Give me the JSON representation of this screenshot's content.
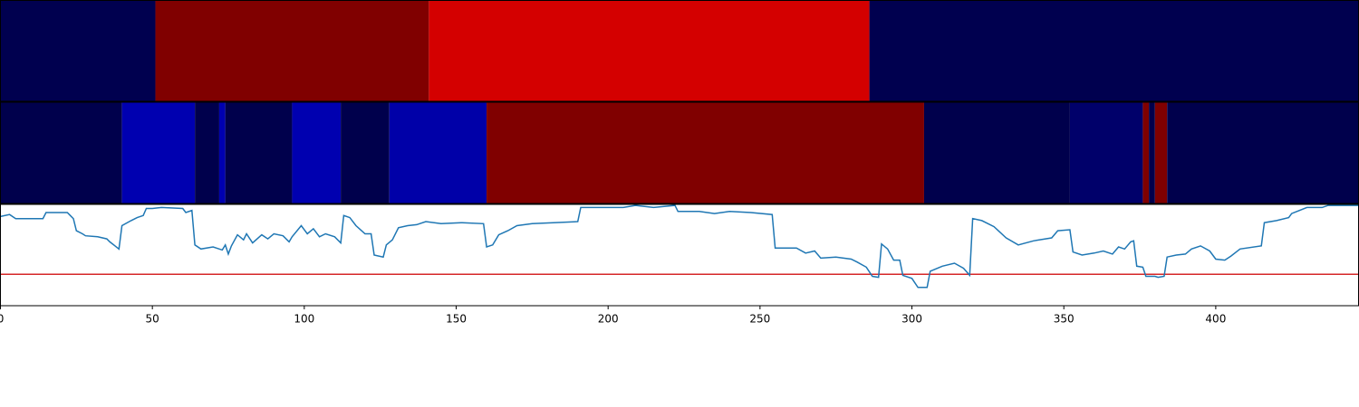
{
  "chart_data": [
    {
      "type": "segments",
      "xlim": [
        0,
        447
      ],
      "bounds": [
        0,
        51,
        141,
        286,
        447
      ],
      "colors": [
        "#00004f",
        "#800000",
        "#d40000",
        "#00004f"
      ]
    },
    {
      "type": "segments",
      "xlim": [
        0,
        447
      ],
      "bounds": [
        0,
        40,
        64,
        72,
        74,
        96,
        112,
        128,
        160,
        304,
        352,
        376,
        378,
        380,
        384,
        447
      ],
      "colors": [
        "#00004c",
        "#0000b0",
        "#00004c",
        "#0000b0",
        "#00004c",
        "#0000b0",
        "#00004c",
        "#0000a8",
        "#800000",
        "#00004c",
        "#00006a",
        "#800000",
        "#00004c",
        "#800000",
        "#00004c"
      ]
    },
    {
      "type": "line",
      "xlim": [
        0,
        447
      ],
      "ylim": [
        0,
        100
      ],
      "color": "#1f77b4",
      "hline": 31,
      "hline_color": "#d62728",
      "xticks": [
        0,
        50,
        100,
        150,
        200,
        250,
        300,
        350,
        400
      ],
      "x": [
        0,
        3,
        5,
        14,
        15,
        22,
        23,
        24,
        25,
        27,
        28,
        32,
        35,
        36,
        39,
        40,
        43,
        45,
        47,
        48,
        50,
        53,
        60,
        61,
        63,
        64,
        66,
        70,
        73,
        74,
        75,
        76,
        78,
        80,
        81,
        83,
        86,
        88,
        90,
        93,
        95,
        96,
        99,
        101,
        103,
        105,
        107,
        110,
        112,
        113,
        115,
        117,
        120,
        122,
        123,
        126,
        127,
        129,
        131,
        134,
        137,
        140,
        145,
        152,
        159,
        160,
        162,
        164,
        167,
        170,
        175,
        182,
        190,
        191,
        205,
        209,
        215,
        222,
        223,
        230,
        235,
        240,
        247,
        254,
        255,
        262,
        265,
        268,
        270,
        275,
        280,
        282,
        285,
        287,
        289,
        290,
        292,
        294,
        296,
        297,
        300,
        302,
        305,
        306,
        310,
        314,
        317,
        319,
        320,
        323,
        327,
        331,
        335,
        340,
        346,
        348,
        352,
        353,
        356,
        360,
        363,
        366,
        368,
        370,
        372,
        373,
        374,
        376,
        377,
        380,
        381,
        383,
        384,
        387,
        390,
        392,
        395,
        398,
        400,
        403,
        405,
        408,
        415,
        416,
        420,
        424,
        425,
        430,
        435,
        437,
        447
      ],
      "values": [
        88,
        90,
        86,
        86,
        92,
        92,
        89,
        86,
        74,
        71,
        69,
        68,
        66,
        63,
        56,
        79,
        84,
        87,
        89,
        96,
        96,
        97,
        96,
        92,
        94,
        60,
        56,
        58,
        55,
        60,
        51,
        59,
        70,
        65,
        71,
        62,
        70,
        66,
        71,
        69,
        63,
        68,
        79,
        71,
        76,
        68,
        71,
        68,
        62,
        89,
        87,
        79,
        71,
        71,
        50,
        48,
        60,
        65,
        77,
        79,
        80,
        83,
        81,
        82,
        81,
        58,
        60,
        70,
        74,
        79,
        81,
        82,
        83,
        97,
        97,
        99,
        97,
        99,
        93,
        93,
        91,
        93,
        92,
        90,
        57,
        57,
        52,
        54,
        47,
        48,
        46,
        43,
        38,
        29,
        28,
        61,
        56,
        45,
        45,
        30,
        27,
        18,
        18,
        34,
        39,
        42,
        37,
        30,
        86,
        84,
        78,
        67,
        60,
        64,
        67,
        74,
        75,
        53,
        50,
        52,
        54,
        51,
        58,
        56,
        63,
        64,
        39,
        38,
        29,
        29,
        28,
        29,
        48,
        50,
        51,
        56,
        59,
        54,
        46,
        45,
        49,
        56,
        59,
        82,
        84,
        87,
        91,
        97,
        97,
        99,
        99
      ]
    }
  ]
}
